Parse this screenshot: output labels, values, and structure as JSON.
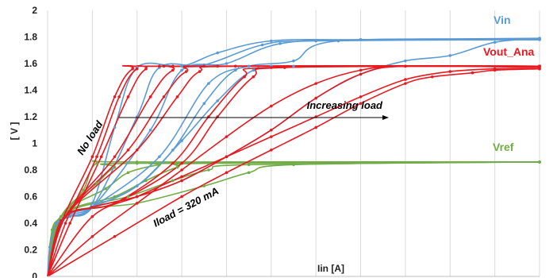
{
  "chart_data": {
    "type": "line",
    "title": "",
    "xlabel": "Iin [A]",
    "ylabel": "[ V ]",
    "ylim": [
      0,
      2
    ],
    "xlim": [
      0,
      11
    ],
    "y_ticks": [
      "0",
      "0.2",
      "0.4",
      "0.6",
      "0.8",
      "1",
      "1.2",
      "1.4",
      "1.6",
      "1.8",
      "2"
    ],
    "x_ticks_labeled": false,
    "grid": "vertical",
    "colors": {
      "vin": "#5b9bd5",
      "vout": "#e8191f",
      "vref": "#70ad47",
      "grid": "#d9d9d9"
    },
    "series_labels": [
      {
        "key": "vin",
        "text": "Vin"
      },
      {
        "key": "vout",
        "text": "Vout_Ana"
      },
      {
        "key": "vref",
        "text": "Vref"
      }
    ],
    "annotations": {
      "no_load": "No load",
      "increasing_load": "Increasing load",
      "iload": "Iload = 320 mA"
    },
    "series": [
      {
        "group": "vin",
        "points": [
          [
            0,
            0
          ],
          [
            0.05,
            0.22
          ],
          [
            0.2,
            0.4
          ],
          [
            0.5,
            0.45
          ],
          [
            1,
            0.55
          ],
          [
            1.5,
            1.12
          ],
          [
            2,
            1.57
          ],
          [
            3,
            1.58
          ],
          [
            3.8,
            1.68
          ],
          [
            5,
            1.77
          ],
          [
            7,
            1.78
          ],
          [
            11,
            1.79
          ]
        ]
      },
      {
        "group": "vin",
        "points": [
          [
            0,
            0
          ],
          [
            0.3,
            0.42
          ],
          [
            1,
            0.52
          ],
          [
            2,
            1.2
          ],
          [
            2.5,
            1.57
          ],
          [
            3.5,
            1.59
          ],
          [
            4.8,
            1.74
          ],
          [
            6,
            1.77
          ],
          [
            11,
            1.78
          ]
        ]
      },
      {
        "group": "vin",
        "points": [
          [
            0,
            0
          ],
          [
            0.3,
            0.42
          ],
          [
            1,
            0.52
          ],
          [
            2.3,
            1.1
          ],
          [
            3,
            1.55
          ],
          [
            4,
            1.6
          ],
          [
            5.2,
            1.75
          ],
          [
            7,
            1.78
          ],
          [
            11,
            1.78
          ]
        ]
      },
      {
        "group": "vin",
        "points": [
          [
            0,
            0
          ],
          [
            0.3,
            0.42
          ],
          [
            1,
            0.52
          ],
          [
            2.5,
            0.9
          ],
          [
            3.6,
            1.45
          ],
          [
            4.5,
            1.58
          ],
          [
            5.5,
            1.62
          ],
          [
            6.5,
            1.77
          ],
          [
            11,
            1.78
          ]
        ]
      },
      {
        "group": "vin",
        "points": [
          [
            0,
            0
          ],
          [
            0.3,
            0.42
          ],
          [
            1,
            0.52
          ],
          [
            2,
            0.68
          ],
          [
            2.8,
            0.95
          ],
          [
            3.5,
            1.3
          ],
          [
            4.2,
            1.55
          ],
          [
            5,
            1.58
          ],
          [
            11,
            1.58
          ]
        ]
      },
      {
        "group": "vin",
        "points": [
          [
            0,
            0
          ],
          [
            0.3,
            0.42
          ],
          [
            1,
            0.52
          ],
          [
            2,
            0.68
          ],
          [
            3,
            1.02
          ],
          [
            3.8,
            1.32
          ],
          [
            4.6,
            1.55
          ],
          [
            5.5,
            1.58
          ],
          [
            11,
            1.58
          ]
        ]
      },
      {
        "group": "vin",
        "points": [
          [
            0,
            0
          ],
          [
            0.3,
            0.42
          ],
          [
            1,
            0.52
          ],
          [
            2,
            0.6
          ],
          [
            3,
            0.72
          ],
          [
            4,
            0.9
          ],
          [
            5,
            1.1
          ],
          [
            6,
            1.34
          ],
          [
            7,
            1.52
          ],
          [
            8,
            1.62
          ],
          [
            9,
            1.66
          ],
          [
            10,
            1.76
          ],
          [
            11,
            1.79
          ]
        ]
      },
      {
        "group": "vout",
        "points": [
          [
            0,
            0
          ],
          [
            0.3,
            0.4
          ],
          [
            1,
            0.9
          ],
          [
            1.5,
            1.35
          ],
          [
            1.9,
            1.56
          ],
          [
            2.5,
            1.58
          ],
          [
            11,
            1.58
          ]
        ]
      },
      {
        "group": "vout",
        "points": [
          [
            0,
            0
          ],
          [
            0.4,
            0.4
          ],
          [
            1.1,
            0.9
          ],
          [
            1.6,
            1.35
          ],
          [
            2,
            1.56
          ],
          [
            2.6,
            1.58
          ],
          [
            11,
            1.58
          ]
        ]
      },
      {
        "group": "vout",
        "points": [
          [
            0,
            0
          ],
          [
            0.5,
            0.4
          ],
          [
            1.2,
            0.9
          ],
          [
            1.8,
            1.35
          ],
          [
            2.2,
            1.56
          ],
          [
            2.8,
            1.58
          ],
          [
            11,
            1.58
          ]
        ]
      },
      {
        "group": "vout",
        "points": [
          [
            0,
            0
          ],
          [
            0.4,
            0.45
          ],
          [
            1.5,
            0.9
          ],
          [
            2.3,
            1.35
          ],
          [
            2.8,
            1.55
          ],
          [
            3.5,
            1.58
          ],
          [
            11,
            1.58
          ]
        ]
      },
      {
        "group": "vout",
        "points": [
          [
            0,
            0
          ],
          [
            0.4,
            0.45
          ],
          [
            1.8,
            0.95
          ],
          [
            2.6,
            1.35
          ],
          [
            3.1,
            1.54
          ],
          [
            3.8,
            1.58
          ],
          [
            11,
            1.58
          ]
        ]
      },
      {
        "group": "vout",
        "points": [
          [
            0,
            0
          ],
          [
            0.4,
            0.45
          ],
          [
            2,
            0.95
          ],
          [
            2.9,
            1.35
          ],
          [
            3.4,
            1.54
          ],
          [
            4.2,
            1.58
          ],
          [
            11,
            1.58
          ]
        ]
      },
      {
        "group": "vout",
        "points": [
          [
            0,
            0
          ],
          [
            0.4,
            0.45
          ],
          [
            1.5,
            0.55
          ],
          [
            2.8,
            0.85
          ],
          [
            3.6,
            1.2
          ],
          [
            4.4,
            1.5
          ],
          [
            5,
            1.57
          ],
          [
            11,
            1.58
          ]
        ]
      },
      {
        "group": "vout",
        "points": [
          [
            0,
            0
          ],
          [
            0.4,
            0.45
          ],
          [
            1.5,
            0.55
          ],
          [
            3,
            0.85
          ],
          [
            3.8,
            1.2
          ],
          [
            4.6,
            1.5
          ],
          [
            5.3,
            1.57
          ],
          [
            11,
            1.58
          ]
        ]
      },
      {
        "group": "vout",
        "points": [
          [
            0,
            0
          ],
          [
            0.3,
            0.42
          ],
          [
            1,
            0.52
          ],
          [
            2,
            0.6
          ],
          [
            3,
            0.72
          ],
          [
            4,
            0.9
          ],
          [
            5,
            1.1
          ],
          [
            6,
            1.34
          ],
          [
            7,
            1.52
          ],
          [
            8,
            1.58
          ],
          [
            11,
            1.57
          ]
        ]
      },
      {
        "group": "vout",
        "points": [
          [
            0,
            0
          ],
          [
            1,
            0.45
          ],
          [
            2,
            0.6
          ],
          [
            3,
            0.75
          ],
          [
            4,
            0.9
          ],
          [
            5,
            1.05
          ],
          [
            6,
            1.2
          ],
          [
            7,
            1.35
          ],
          [
            8,
            1.48
          ],
          [
            9,
            1.54
          ],
          [
            10,
            1.56
          ],
          [
            11,
            1.56
          ]
        ]
      },
      {
        "group": "vout",
        "points": [
          [
            0,
            0
          ],
          [
            1.5,
            0.3
          ],
          [
            3,
            0.6
          ],
          [
            4,
            0.78
          ],
          [
            5,
            0.95
          ],
          [
            6,
            1.12
          ],
          [
            7,
            1.3
          ],
          [
            8,
            1.45
          ],
          [
            8.6,
            1.5
          ],
          [
            9.5,
            1.53
          ],
          [
            10,
            1.55
          ],
          [
            11,
            1.56
          ]
        ]
      },
      {
        "group": "vout",
        "points": [
          [
            0,
            0
          ],
          [
            1,
            0.3
          ],
          [
            2,
            0.55
          ],
          [
            3,
            0.8
          ],
          [
            4,
            1.05
          ],
          [
            5,
            1.28
          ],
          [
            6,
            1.45
          ],
          [
            7,
            1.55
          ],
          [
            8,
            1.58
          ],
          [
            11,
            1.58
          ]
        ]
      },
      {
        "group": "vref",
        "points": [
          [
            0,
            0
          ],
          [
            0.1,
            0.35
          ],
          [
            0.3,
            0.45
          ],
          [
            0.8,
            0.65
          ],
          [
            1.1,
            0.85
          ],
          [
            2,
            0.86
          ],
          [
            11,
            0.86
          ]
        ]
      },
      {
        "group": "vref",
        "points": [
          [
            0,
            0
          ],
          [
            0.3,
            0.45
          ],
          [
            1.1,
            0.7
          ],
          [
            1.5,
            0.82
          ],
          [
            2,
            0.85
          ],
          [
            11,
            0.86
          ]
        ]
      },
      {
        "group": "vref",
        "points": [
          [
            0,
            0
          ],
          [
            0.3,
            0.45
          ],
          [
            1.3,
            0.66
          ],
          [
            1.8,
            0.78
          ],
          [
            2.5,
            0.84
          ],
          [
            3,
            0.85
          ],
          [
            11,
            0.86
          ]
        ]
      },
      {
        "group": "vref",
        "points": [
          [
            0,
            0
          ],
          [
            0.3,
            0.45
          ],
          [
            1.5,
            0.6
          ],
          [
            2.2,
            0.72
          ],
          [
            2.9,
            0.82
          ],
          [
            3.6,
            0.85
          ],
          [
            11,
            0.86
          ]
        ]
      },
      {
        "group": "vref",
        "points": [
          [
            0,
            0
          ],
          [
            0.3,
            0.45
          ],
          [
            1.8,
            0.6
          ],
          [
            2.8,
            0.72
          ],
          [
            3.6,
            0.8
          ],
          [
            4.5,
            0.84
          ],
          [
            11,
            0.86
          ]
        ]
      },
      {
        "group": "vref",
        "points": [
          [
            0,
            0
          ],
          [
            0.3,
            0.45
          ],
          [
            2,
            0.55
          ],
          [
            3.5,
            0.68
          ],
          [
            4.5,
            0.78
          ],
          [
            5.5,
            0.84
          ],
          [
            11,
            0.86
          ]
        ]
      }
    ]
  }
}
